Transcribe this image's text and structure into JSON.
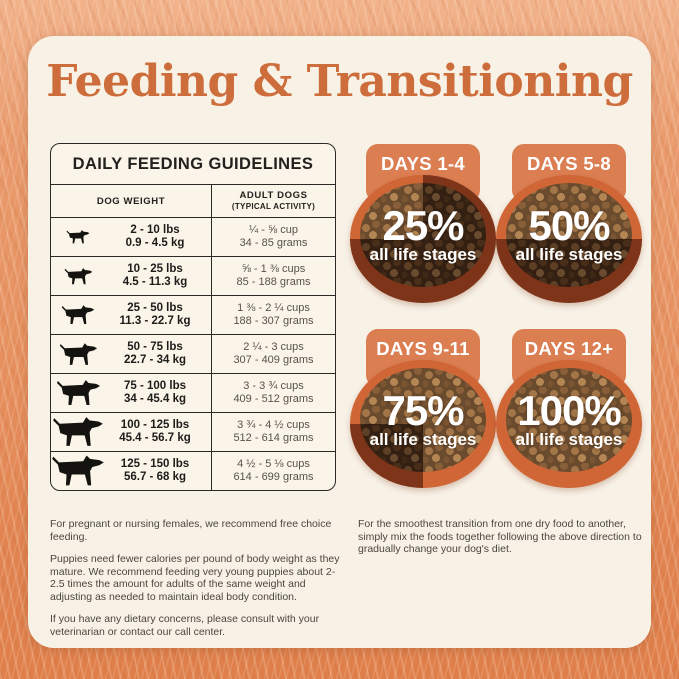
{
  "title": "Feeding & Transitioning",
  "table": {
    "title": "DAILY FEEDING GUIDELINES",
    "col_weight": "DOG WEIGHT",
    "col_amount_line1": "ADULT DOGS",
    "col_amount_line2": "(TYPICAL ACTIVITY)",
    "rows": [
      {
        "icon": "dog-toy-breed-icon",
        "lbs": "2 - 10 lbs",
        "kg": "0.9 - 4.5 kg",
        "cups": "¼ - ⅝ cup",
        "grams": "34 - 85 grams"
      },
      {
        "icon": "dog-small-breed-icon",
        "lbs": "10 - 25 lbs",
        "kg": "4.5 - 11.3 kg",
        "cups": "⅝ - 1 ⅜ cups",
        "grams": "85 - 188 grams"
      },
      {
        "icon": "dog-medium-breed-icon",
        "lbs": "25 - 50 lbs",
        "kg": "11.3 - 22.7 kg",
        "cups": "1 ⅜ - 2 ¼ cups",
        "grams": "188 - 307 grams"
      },
      {
        "icon": "dog-large-breed-icon",
        "lbs": "50 - 75 lbs",
        "kg": "22.7 - 34 kg",
        "cups": "2 ¼ - 3 cups",
        "grams": "307 - 409 grams"
      },
      {
        "icon": "dog-xlarge-breed-icon",
        "lbs": "75 - 100 lbs",
        "kg": "34 - 45.4 kg",
        "cups": "3 - 3 ¾ cups",
        "grams": "409 - 512 grams"
      },
      {
        "icon": "dog-xxlarge-breed-icon",
        "lbs": "100 - 125 lbs",
        "kg": "45.4 - 56.7 kg",
        "cups": "3 ¾ - 4 ½ cups",
        "grams": "512 - 614 grams"
      },
      {
        "icon": "dog-giant-breed-icon",
        "lbs": "125 - 150 lbs",
        "kg": "56.7 - 68 kg",
        "cups": "4 ½ - 5 ⅛ cups",
        "grams": "614 - 699 grams"
      }
    ]
  },
  "transition": {
    "bowls": [
      {
        "days": "DAYS 1-4",
        "percent": "25%",
        "percent_value": 25,
        "sublabel": "all life stages"
      },
      {
        "days": "DAYS 5-8",
        "percent": "50%",
        "percent_value": 50,
        "sublabel": "all life stages"
      },
      {
        "days": "DAYS 9-11",
        "percent": "75%",
        "percent_value": 75,
        "sublabel": "all life stages"
      },
      {
        "days": "DAYS 12+",
        "percent": "100%",
        "percent_value": 100,
        "sublabel": "all life stages"
      }
    ]
  },
  "notes_left": [
    "For pregnant or nursing females, we recommend free choice feeding.",
    "Puppies need fewer calories per pound of body weight as they mature. We recommend feeding very young puppies about 2-2.5 times the amount for adults of the same weight and adjusting as needed to maintain ideal body condition.",
    "If you have any dietary concerns, please consult with your veterinarian or contact our call center."
  ],
  "notes_right": [
    "For the smoothest transition from one dry food to another, simply mix the foods together following the above direction to gradually change your dog's diet."
  ],
  "colors": {
    "accent_title": "#cd6d3b",
    "badge_orange": "#db7e52",
    "bowl_rim_orange": "#c4552a",
    "card_cream": "#f8f1e6",
    "background_orange": "#e68f5e"
  }
}
